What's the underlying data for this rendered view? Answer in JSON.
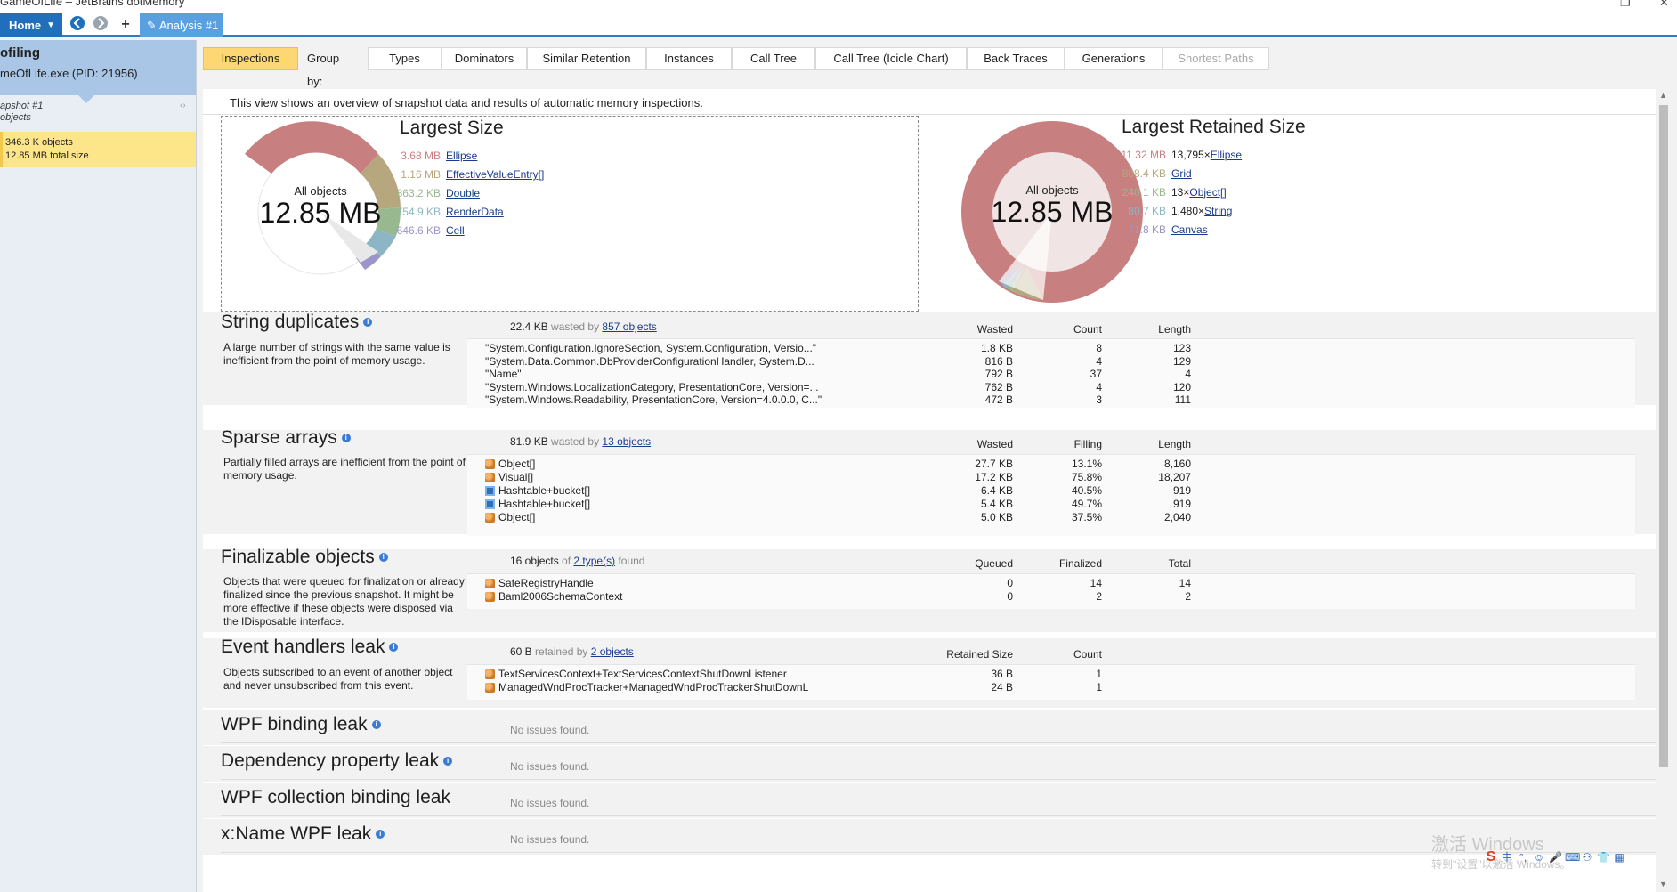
{
  "window": {
    "title": "GameOfLife – JetBrains dotMemory",
    "restore_glyph": "❐",
    "close_glyph": "✕"
  },
  "toolbar": {
    "home_label": "Home",
    "home_caret": "▼",
    "back_icon": "⮌",
    "forward_icon": "⮎",
    "add_icon": "+",
    "analysis_tab": "Analysis #1",
    "analysis_icon": "✎"
  },
  "sidebar": {
    "title": "ofiling",
    "process": "meOfLife.exe (PID: 21956)",
    "snapshot_name": "apshot #1",
    "snapshot_sub": "objects",
    "close_glyph": "‹›",
    "objects_count": "346.3 K",
    "objects_label": "objects",
    "total_size": "12.85 MB",
    "total_label": "total size"
  },
  "view_tabs": {
    "inspections": "Inspections",
    "group_by": "Group by:",
    "types": "Types",
    "dominators": "Dominators",
    "similar_retention": "Similar Retention",
    "instances": "Instances",
    "call_tree": "Call Tree",
    "call_tree_icicle": "Call Tree (Icicle Chart)",
    "back_traces": "Back Traces",
    "generations": "Generations",
    "shortest_paths": "Shortest Paths"
  },
  "overview": {
    "description": "This view shows an overview of snapshot data and results of automatic memory inspections.",
    "largest_size": {
      "title": "Largest Size",
      "center_label": "All objects",
      "center_value": "12.85 MB",
      "items": [
        {
          "size": "3.68 MB",
          "name": "Ellipse",
          "color": "#c87f7f"
        },
        {
          "size": "1.16 MB",
          "name": "EffectiveValueEntry[]",
          "color": "#b7a77f"
        },
        {
          "size": "863.2 KB",
          "name": "Double",
          "color": "#98b98f"
        },
        {
          "size": "754.9 KB",
          "name": "RenderData",
          "color": "#8cb6c6"
        },
        {
          "size": "646.6 KB",
          "name": "Cell",
          "color": "#9c95c9"
        }
      ]
    },
    "largest_retained": {
      "title": "Largest Retained Size",
      "center_label": "All objects",
      "center_value": "12.85 MB",
      "items": [
        {
          "size": "11.32 MB",
          "count": "13,795×",
          "name": "Ellipse",
          "color": "#c87f7f"
        },
        {
          "size": "808.4 KB",
          "count": "",
          "name": "Grid",
          "color": "#b7a77f"
        },
        {
          "size": "240.1 KB",
          "count": "13×",
          "name": "Object[]",
          "color": "#98b98f"
        },
        {
          "size": "80.7 KB",
          "count": "1,480×",
          "name": "String",
          "color": "#8cb6c6"
        },
        {
          "size": "71.8 KB",
          "count": "",
          "name": "Canvas",
          "color": "#9c95c9"
        }
      ]
    }
  },
  "string_duplicates": {
    "title": "String duplicates",
    "summary_value": "22.4 KB",
    "summary_mid": "wasted by",
    "summary_link": "857 objects",
    "description": "A large number of strings with the same value is inefficient from the point of memory usage.",
    "columns": [
      "Wasted",
      "Count",
      "Length"
    ],
    "rows": [
      {
        "value": "\"System.Configuration.IgnoreSection, System.Configuration, Versio...\"",
        "wasted": "1.8 KB",
        "count": "8",
        "length": "123"
      },
      {
        "value": "\"System.Data.Common.DbProviderConfigurationHandler, System.D...",
        "wasted": "816 B",
        "count": "4",
        "length": "129"
      },
      {
        "value": "\"Name\"",
        "wasted": "792 B",
        "count": "37",
        "length": "4"
      },
      {
        "value": "\"System.Windows.LocalizationCategory, PresentationCore, Version=...",
        "wasted": "762 B",
        "count": "4",
        "length": "120"
      },
      {
        "value": "\"System.Windows.Readability, PresentationCore, Version=4.0.0.0, C...\"",
        "wasted": "472 B",
        "count": "3",
        "length": "111"
      }
    ]
  },
  "sparse_arrays": {
    "title": "Sparse arrays",
    "summary_value": "81.9 KB",
    "summary_mid": "wasted by",
    "summary_link": "13 objects",
    "description": "Partially filled arrays are inefficient from the point of memory usage.",
    "columns": [
      "Wasted",
      "Filling",
      "Length"
    ],
    "rows": [
      {
        "type": "Object[]",
        "icon": "orange",
        "wasted": "27.7 KB",
        "filling": "13.1%",
        "length": "8,160"
      },
      {
        "type": "Visual[]",
        "icon": "orange",
        "wasted": "17.2 KB",
        "filling": "75.8%",
        "length": "18,207"
      },
      {
        "type": "Hashtable+bucket[]",
        "icon": "blue",
        "wasted": "6.4 KB",
        "filling": "40.5%",
        "length": "919"
      },
      {
        "type": "Hashtable+bucket[]",
        "icon": "blue",
        "wasted": "5.4 KB",
        "filling": "49.7%",
        "length": "919"
      },
      {
        "type": "Object[]",
        "icon": "orange",
        "wasted": "5.0 KB",
        "filling": "37.5%",
        "length": "2,040"
      }
    ]
  },
  "finalizable": {
    "title": "Finalizable objects",
    "summary_value": "16 objects",
    "summary_mid": "of",
    "summary_link": "2 type(s)",
    "summary_tail": "found",
    "description": "Objects that were queued for finalization or already finalized since the previous snapshot. It might be more effective if these objects were disposed via the IDisposable interface.",
    "columns": [
      "Queued",
      "Finalized",
      "Total"
    ],
    "rows": [
      {
        "type": "SafeRegistryHandle",
        "queued": "0",
        "finalized": "14",
        "total": "14"
      },
      {
        "type": "Baml2006SchemaContext",
        "queued": "0",
        "finalized": "2",
        "total": "2"
      }
    ]
  },
  "event_handlers": {
    "title": "Event handlers leak",
    "summary_value": "60 B",
    "summary_mid": "retained by",
    "summary_link": "2 objects",
    "description": "Objects subscribed to an event of another object and never unsubscribed from this event.",
    "columns": [
      "Retained Size",
      "Count"
    ],
    "rows": [
      {
        "type": "TextServicesContext+TextServicesContextShutDownListener",
        "retained": "36 B",
        "count": "1"
      },
      {
        "type": "ManagedWndProcTracker+ManagedWndProcTrackerShutDownL",
        "retained": "24 B",
        "count": "1"
      }
    ]
  },
  "wpf_binding": {
    "title": "WPF binding leak",
    "status": "No issues found."
  },
  "dependency_property": {
    "title": "Dependency property leak",
    "status": "No issues found."
  },
  "wpf_collection": {
    "title": "WPF collection binding leak",
    "status": "No issues found."
  },
  "xname": {
    "title": "x:Name WPF leak",
    "status": "No issues found."
  },
  "overlay": {
    "watermark_line1": "激活 Windows",
    "watermark_line2": "转到\"设置\"以激活 Windows。",
    "tray_ime": "中"
  }
}
